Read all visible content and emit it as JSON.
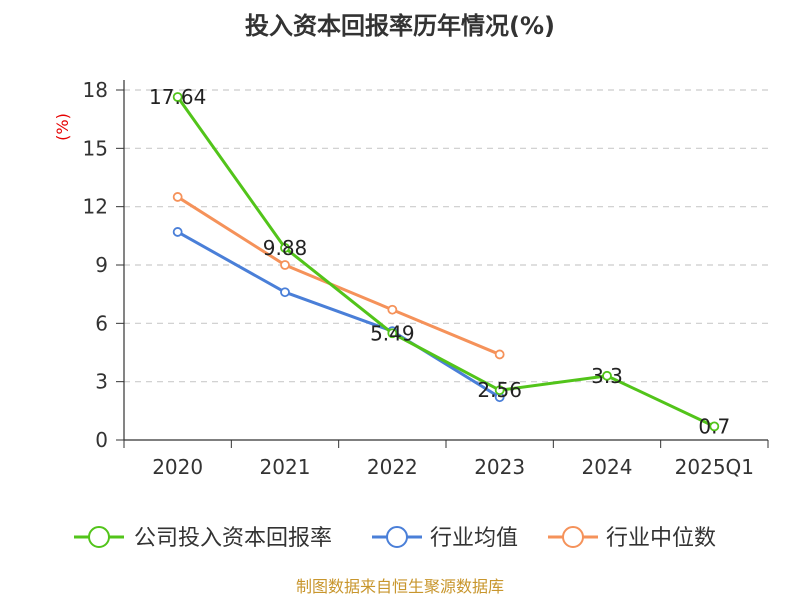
{
  "title": "投入资本回报率历年情况(%)",
  "source": "制图数据来自恒生聚源数据库",
  "chart_data": {
    "type": "line",
    "title": "投入资本回报率历年情况(%)",
    "ylabel": "(%)",
    "categories": [
      "2020",
      "2021",
      "2022",
      "2023",
      "2024",
      "2025Q1"
    ],
    "ylim": [
      0,
      18
    ],
    "yticks": [
      0,
      3,
      6,
      9,
      12,
      15,
      18
    ],
    "grid": true,
    "legend_position": "bottom",
    "series": [
      {
        "name": "公司投入资本回报率",
        "color": "#52c41a",
        "values": [
          17.64,
          9.88,
          5.49,
          2.56,
          3.3,
          0.7
        ],
        "labels": [
          "17.64",
          "9.88",
          "5.49",
          "2.56",
          "3.3",
          "0.7"
        ]
      },
      {
        "name": "行业均值",
        "color": "#4a7fd8",
        "values": [
          10.7,
          7.6,
          5.6,
          2.2,
          null,
          null
        ]
      },
      {
        "name": "行业中位数",
        "color": "#f5925a",
        "values": [
          12.5,
          9.0,
          6.7,
          4.4,
          null,
          null
        ]
      }
    ]
  }
}
